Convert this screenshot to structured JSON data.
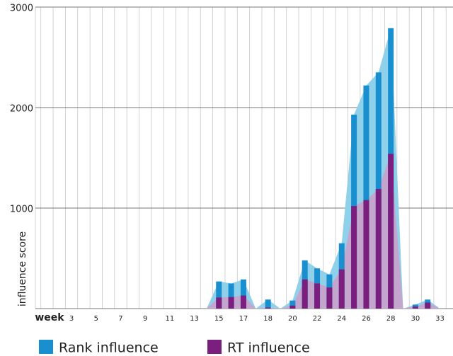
{
  "chart_data": {
    "type": "bar",
    "y_label": "influence score",
    "x_label": "week",
    "categories": [
      null,
      null,
      null,
      "3",
      null,
      "5",
      null,
      "7",
      null,
      "9",
      null,
      "11",
      null,
      "13",
      null,
      "15",
      null,
      "17",
      null,
      "18",
      null,
      "20",
      null,
      "22",
      null,
      "24",
      null,
      "26",
      null,
      "28",
      null,
      "30",
      null,
      "33"
    ],
    "series": [
      {
        "name": "Rank influence",
        "color": "#1a8fd0",
        "area_color": "#8fd0ea",
        "values": [
          null,
          null,
          null,
          null,
          null,
          null,
          null,
          null,
          null,
          null,
          null,
          null,
          null,
          null,
          null,
          270,
          250,
          290,
          null,
          90,
          null,
          80,
          480,
          400,
          340,
          650,
          1930,
          2220,
          2350,
          2790,
          null,
          40,
          90,
          null
        ]
      },
      {
        "name": "RT influence",
        "color": "#7b1f7f",
        "area_color": "#c9a0cb",
        "values": [
          null,
          null,
          null,
          null,
          null,
          null,
          null,
          null,
          null,
          null,
          null,
          null,
          null,
          null,
          null,
          110,
          115,
          130,
          null,
          10,
          null,
          30,
          290,
          250,
          210,
          390,
          1020,
          1080,
          1190,
          1540,
          null,
          20,
          60,
          null
        ]
      }
    ],
    "ylim": [
      0,
      3000
    ],
    "yticks": [
      1000,
      2000,
      3000
    ],
    "grid": true
  }
}
